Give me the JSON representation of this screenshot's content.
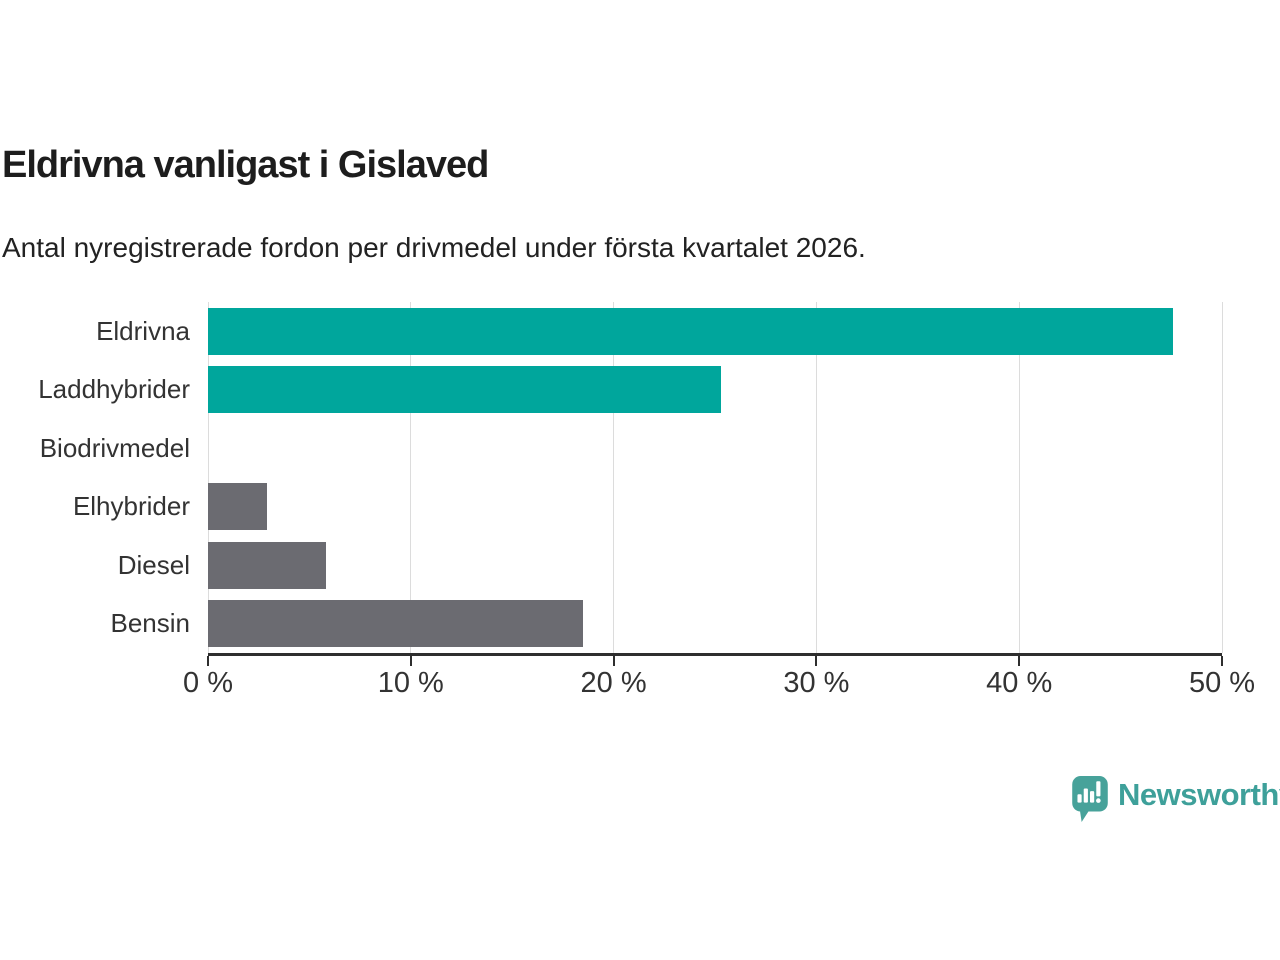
{
  "chart_data": {
    "type": "bar",
    "orientation": "horizontal",
    "title": "Eldrivna vanligast i Gislaved",
    "subtitle": "Antal nyregistrerade fordon per drivmedel under första kvartalet 2026.",
    "categories": [
      "Eldrivna",
      "Laddhybrider",
      "Biodrivmedel",
      "Elhybrider",
      "Diesel",
      "Bensin"
    ],
    "values": [
      47.6,
      25.3,
      0,
      2.9,
      5.8,
      18.5
    ],
    "unit": "%",
    "xlim": [
      0,
      50
    ],
    "x_ticks": [
      0,
      10,
      20,
      30,
      40,
      50
    ],
    "x_tick_labels": [
      "0 %",
      "10 %",
      "20 %",
      "30 %",
      "40 %",
      "50 %"
    ],
    "bar_colors": [
      "#00A69C",
      "#00A69C",
      "#6B6B71",
      "#6B6B71",
      "#6B6B71",
      "#6B6B71"
    ],
    "highlight_color": "#00A69C",
    "default_color": "#6B6B71",
    "grid": true,
    "legend": "none"
  },
  "branding": {
    "logo_text": "Newsworthy",
    "logo_color": "#3EA09A",
    "logo_icon_color": "#47A29A",
    "logo_icon": "newsworthy-speech-bubble-chart-icon"
  }
}
